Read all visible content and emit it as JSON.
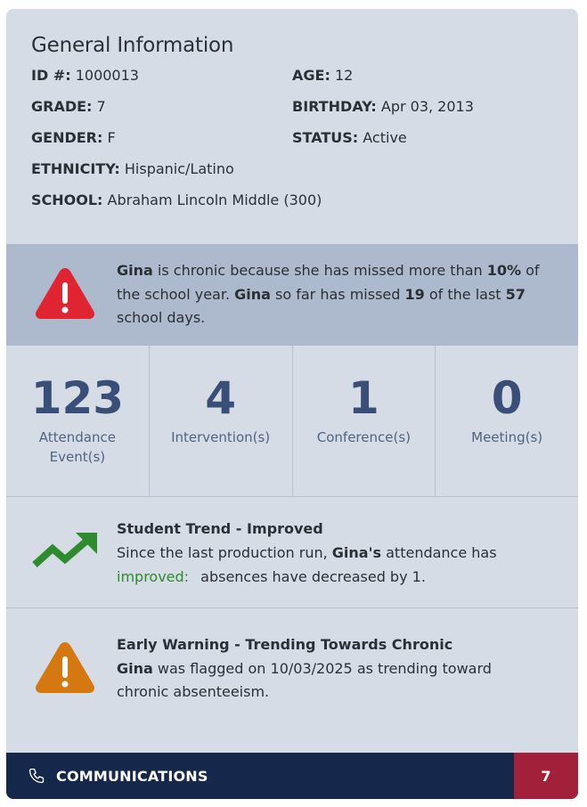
{
  "general": {
    "title": "General Information",
    "id_label": "ID #:",
    "id_value": "1000013",
    "age_label": "AGE:",
    "age_value": "12",
    "grade_label": "GRADE:",
    "grade_value": "7",
    "birthday_label": "BIRTHDAY:",
    "birthday_value": "Apr 03, 2013",
    "gender_label": "GENDER:",
    "gender_value": "F",
    "status_label": "STATUS:",
    "status_value": "Active",
    "ethnicity_label": "ETHNICITY:",
    "ethnicity_value": "Hispanic/Latino",
    "school_label": "SCHOOL:",
    "school_value": "Abraham Lincoln Middle (300)"
  },
  "chronic_alert": {
    "icon": "error-triangle-icon",
    "color": "#e02432",
    "name": "Gina",
    "t1": " is chronic because she has missed more than ",
    "pct": "10%",
    "t2": " of the school year. ",
    "name2": "Gina",
    "t3": " so far has missed ",
    "missed": "19",
    "t4": " of the last ",
    "days": "57",
    "t5": " school days."
  },
  "stats": [
    {
      "value": "123",
      "label": "Attendance Event(s)"
    },
    {
      "value": "4",
      "label": "Intervention(s)"
    },
    {
      "value": "1",
      "label": "Conference(s)"
    },
    {
      "value": "0",
      "label": "Meeting(s)"
    }
  ],
  "trend": {
    "icon": "trending-up-icon",
    "color": "#2e8b2e",
    "heading": "Student Trend - Improved",
    "t1": "Since the last production run, ",
    "name": "Gina's",
    "t2": " attendance has ",
    "improved": "improved:",
    "t3": " absences have decreased by 1."
  },
  "warning": {
    "icon": "warning-triangle-icon",
    "color": "#d4780f",
    "heading": "Early Warning - Trending Towards Chronic",
    "name": "Gina",
    "t1": " was flagged on 10/03/2025 as trending toward chronic absenteeism."
  },
  "communications": {
    "icon": "phone-icon",
    "label": "COMMUNICATIONS",
    "count": "7"
  }
}
